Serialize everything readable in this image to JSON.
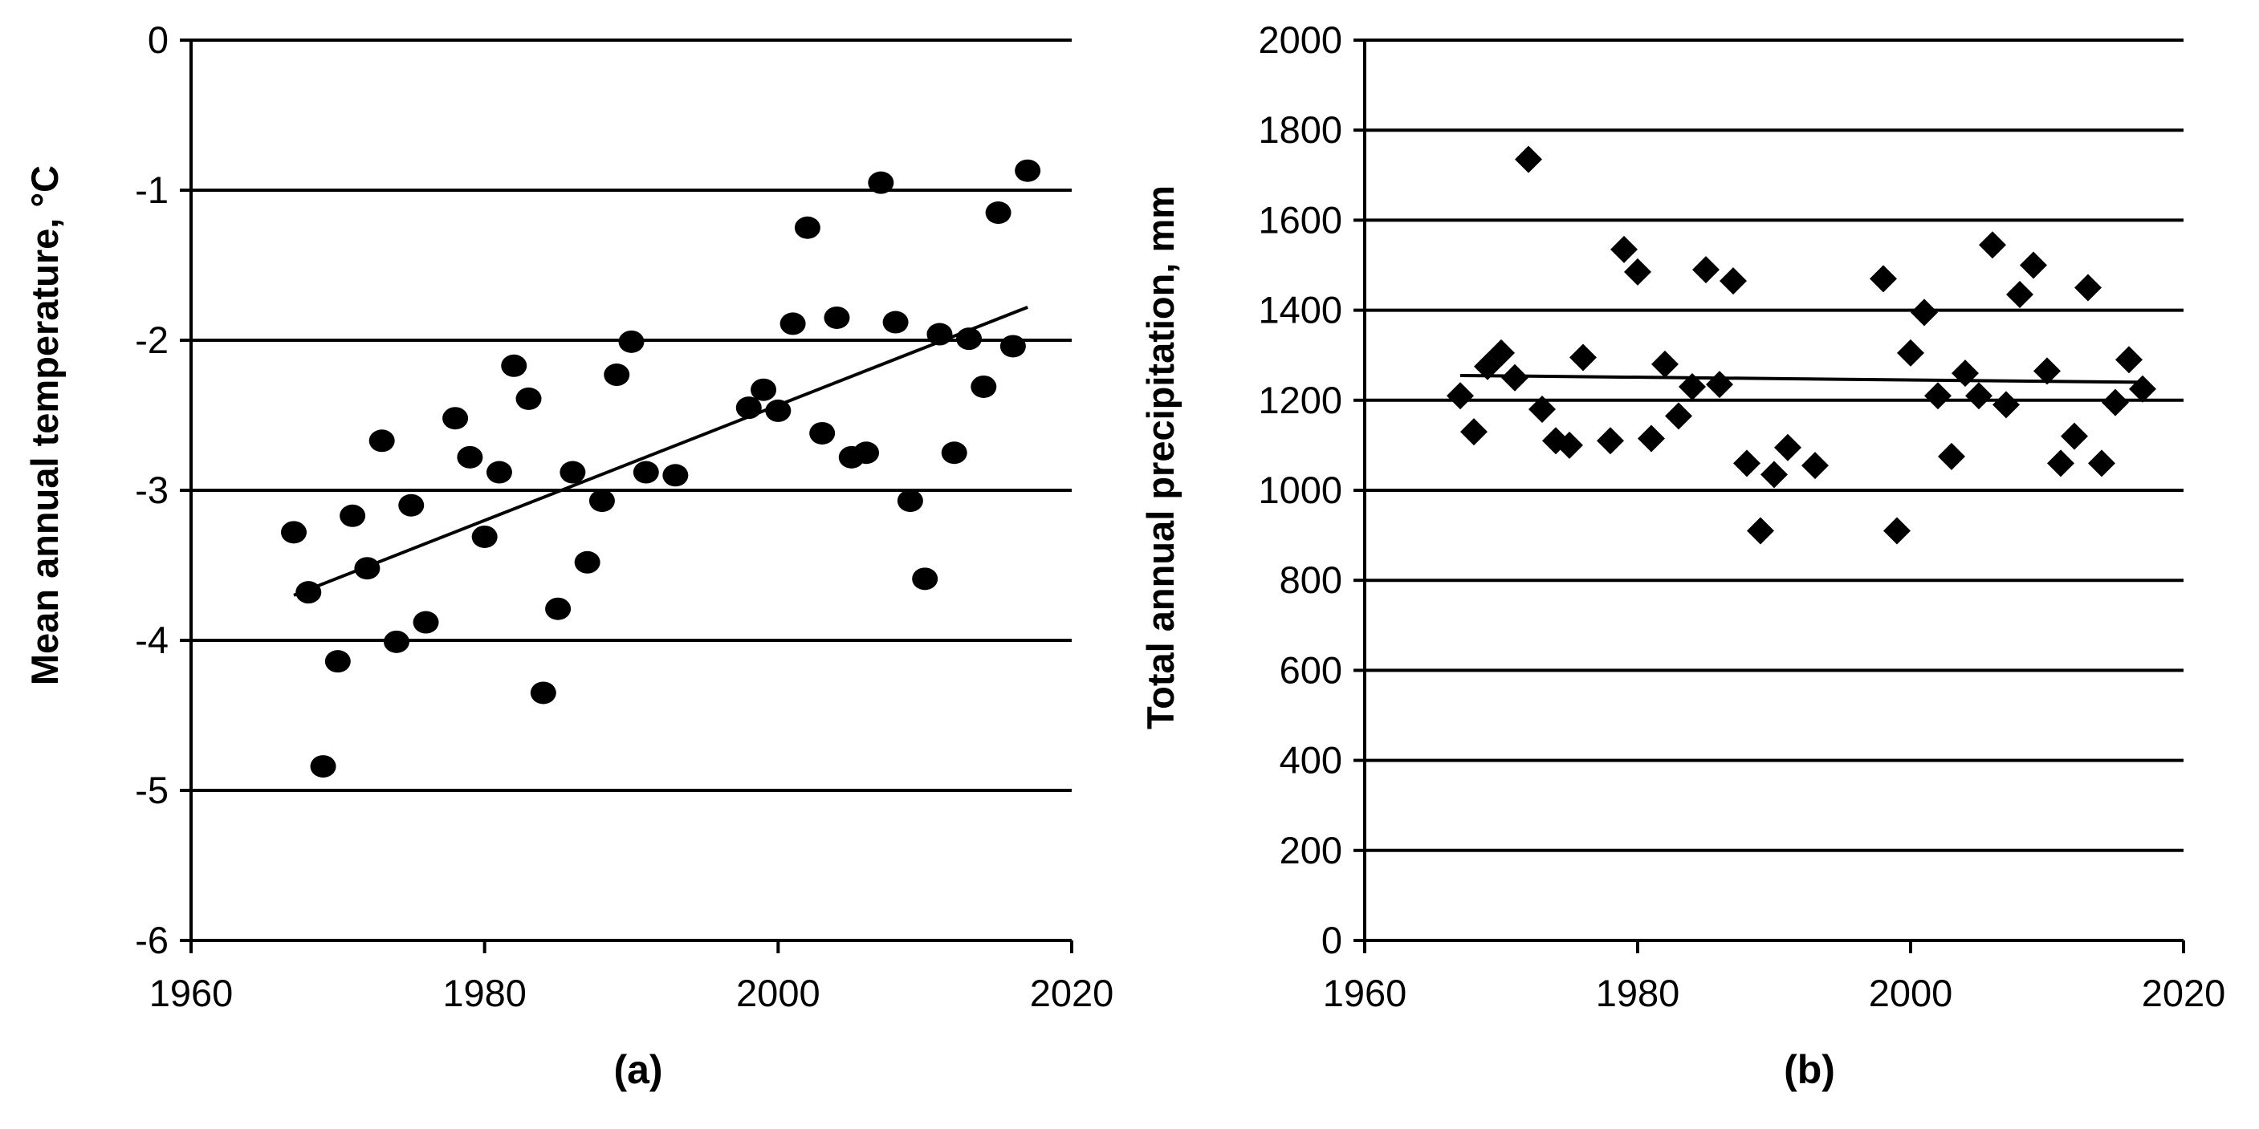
{
  "chart_data": [
    {
      "type": "scatter",
      "panel_label": "(a)",
      "ylabel": "Mean annual temperature, °C",
      "xlim": [
        1960,
        2020
      ],
      "ylim": [
        -6,
        0
      ],
      "xticks": [
        1960,
        1980,
        2000,
        2020
      ],
      "yticks": [
        0,
        -1,
        -2,
        -3,
        -4,
        -5,
        -6
      ],
      "grid": "horizontal",
      "marker": "circle",
      "x": [
        1967,
        1968,
        1969,
        1970,
        1971,
        1972,
        1973,
        1974,
        1975,
        1976,
        1978,
        1979,
        1980,
        1981,
        1982,
        1983,
        1984,
        1985,
        1986,
        1987,
        1988,
        1989,
        1990,
        1991,
        1993,
        1998,
        1999,
        2000,
        2001,
        2002,
        2003,
        2004,
        2005,
        2006,
        2007,
        2008,
        2009,
        2010,
        2011,
        2012,
        2013,
        2014,
        2015,
        2016,
        2017
      ],
      "y": [
        -3.28,
        -3.68,
        -4.84,
        -4.14,
        -3.17,
        -3.52,
        -2.67,
        -4.01,
        -3.1,
        -3.88,
        -2.52,
        -2.78,
        -3.31,
        -2.88,
        -2.17,
        -2.39,
        -4.35,
        -3.79,
        -2.88,
        -3.48,
        -3.07,
        -2.23,
        -2.01,
        -2.88,
        -2.9,
        -2.45,
        -2.33,
        -2.47,
        -1.89,
        -1.25,
        -2.62,
        -1.85,
        -2.78,
        -2.75,
        -0.95,
        -1.88,
        -3.07,
        -3.59,
        -1.96,
        -2.75,
        -1.99,
        -2.31,
        -1.15,
        -2.04,
        -0.87
      ],
      "trendline": {
        "x": [
          1967,
          2017
        ],
        "y": [
          -3.7,
          -1.78
        ]
      }
    },
    {
      "type": "scatter",
      "panel_label": "(b)",
      "ylabel": "Total annual precipitation, mm",
      "xlim": [
        1960,
        2020
      ],
      "ylim": [
        0,
        2000
      ],
      "xticks": [
        1960,
        1980,
        2000,
        2020
      ],
      "yticks": [
        2000,
        1800,
        1600,
        1400,
        1200,
        1000,
        800,
        600,
        400,
        200,
        0
      ],
      "grid": "horizontal",
      "marker": "diamond",
      "x": [
        1967,
        1968,
        1969,
        1970,
        1971,
        1972,
        1973,
        1974,
        1975,
        1976,
        1978,
        1979,
        1980,
        1981,
        1982,
        1983,
        1984,
        1985,
        1986,
        1987,
        1988,
        1989,
        1990,
        1991,
        1993,
        1998,
        1999,
        2000,
        2001,
        2002,
        2003,
        2004,
        2005,
        2006,
        2007,
        2008,
        2009,
        2010,
        2011,
        2012,
        2013,
        2014,
        2015,
        2016,
        2017
      ],
      "y": [
        1210,
        1130,
        1275,
        1305,
        1250,
        1735,
        1180,
        1110,
        1100,
        1295,
        1110,
        1535,
        1485,
        1115,
        1280,
        1165,
        1230,
        1490,
        1235,
        1465,
        1060,
        910,
        1035,
        1095,
        1055,
        1470,
        910,
        1305,
        1395,
        1210,
        1075,
        1260,
        1210,
        1545,
        1190,
        1435,
        1500,
        1265,
        1060,
        1120,
        1450,
        1060,
        1195,
        1290,
        1225
      ],
      "trendline": {
        "x": [
          1967,
          2017
        ],
        "y": [
          1255,
          1240
        ]
      }
    }
  ]
}
